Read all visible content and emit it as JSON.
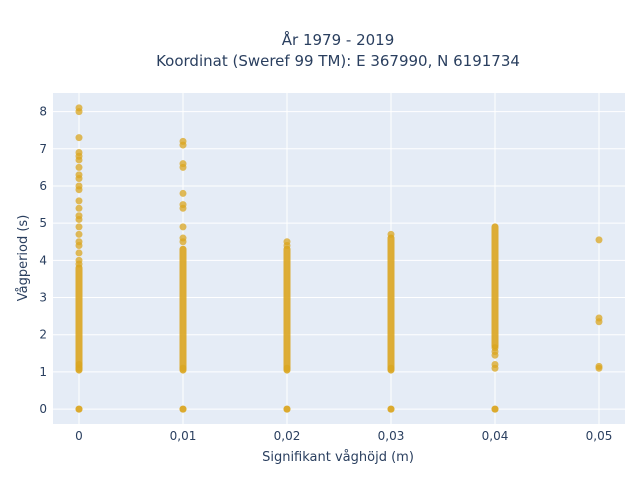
{
  "chart_data": {
    "type": "scatter",
    "title_line1": "År 1979 - 2019",
    "title_line2": "Koordinat (Sweref 99 TM): E 367990, N 6191734",
    "xlabel": "Signifikant våghöjd (m)",
    "ylabel": "Vågperiod (s)",
    "xlim": [
      -0.0025,
      0.0525
    ],
    "ylim": [
      -0.4,
      8.5
    ],
    "x_ticks": [
      0,
      0.01,
      0.02,
      0.03,
      0.04,
      0.05
    ],
    "x_tick_labels": [
      "0",
      "0,01",
      "0,02",
      "0,03",
      "0,04",
      "0,05"
    ],
    "y_ticks": [
      0,
      1,
      2,
      3,
      4,
      5,
      6,
      7,
      8
    ],
    "y_tick_labels": [
      "0",
      "1",
      "2",
      "3",
      "4",
      "5",
      "6",
      "7",
      "8"
    ],
    "grid": true,
    "marker_color": "#DAA520",
    "plot_bg": "#E5ECF6",
    "series": [
      {
        "x": 0,
        "dense_range": [
          1.05,
          3.8
        ],
        "y": [
          0,
          0,
          1.1,
          1.2,
          3.9,
          4.0,
          4.2,
          4.4,
          4.5,
          4.7,
          4.9,
          5.1,
          5.2,
          5.4,
          5.6,
          5.9,
          6.0,
          6.2,
          6.3,
          6.5,
          6.7,
          6.8,
          6.9,
          7.3,
          8.0,
          8.1
        ]
      },
      {
        "x": 0.01,
        "dense_range": [
          1.05,
          4.3
        ],
        "y": [
          0,
          0,
          1.1,
          4.5,
          4.6,
          4.9,
          5.4,
          5.5,
          5.8,
          6.5,
          6.6,
          7.1,
          7.2
        ]
      },
      {
        "x": 0.02,
        "dense_range": [
          1.05,
          4.3
        ],
        "y": [
          0,
          0,
          1.1,
          4.4,
          4.5
        ]
      },
      {
        "x": 0.03,
        "dense_range": [
          1.05,
          4.6
        ],
        "y": [
          0,
          0,
          1.1,
          4.7
        ]
      },
      {
        "x": 0.04,
        "dense_range": [
          1.7,
          4.9
        ],
        "y": [
          0,
          0,
          1.1,
          1.2,
          1.45,
          1.55,
          1.65
        ]
      },
      {
        "x": 0.05,
        "dense_range": null,
        "y": [
          1.1,
          1.15,
          2.35,
          2.45,
          4.55
        ]
      }
    ]
  }
}
